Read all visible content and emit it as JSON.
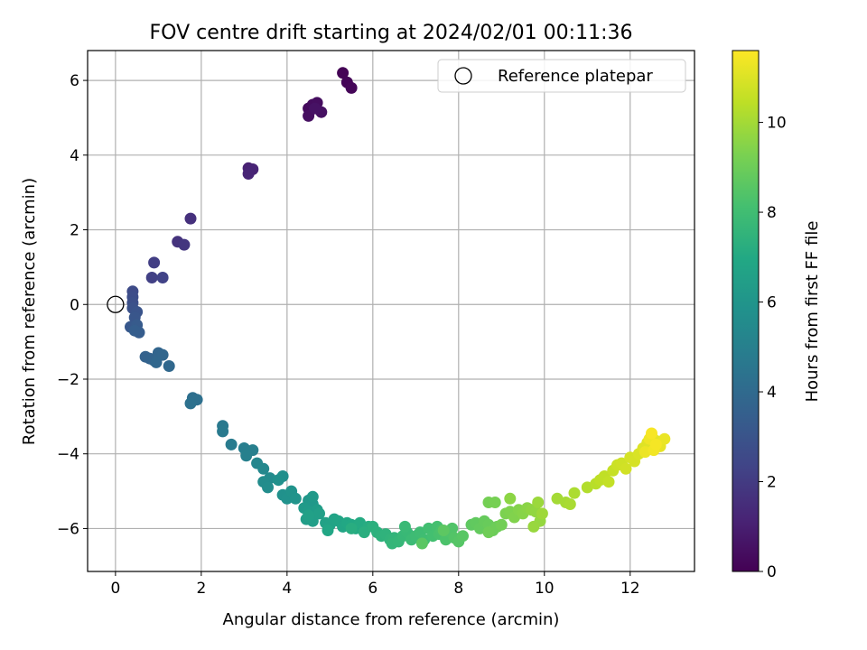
{
  "chart_data": {
    "type": "scatter",
    "title": "FOV centre drift starting at 2024/02/01 00:11:36",
    "xlabel": "Angular distance from reference (arcmin)",
    "ylabel": "Rotation from reference (arcmin)",
    "xlim": [
      -0.65,
      13.5
    ],
    "ylim": [
      -7.15,
      6.8
    ],
    "xticks": [
      0,
      2,
      4,
      6,
      8,
      10,
      12
    ],
    "yticks": [
      -6,
      -4,
      -2,
      0,
      2,
      4,
      6
    ],
    "grid": true,
    "legend": {
      "placement": "top-right",
      "entries": [
        "Reference platepar"
      ]
    },
    "reference_point": {
      "x": 0,
      "y": 0
    },
    "colorbar": {
      "label": "Hours from first FF file",
      "range": [
        0,
        11.6
      ],
      "ticks": [
        0,
        2,
        4,
        6,
        8,
        10
      ],
      "colormap": "viridis"
    },
    "points": [
      [
        5.3,
        6.2,
        0.05
      ],
      [
        5.4,
        5.95,
        0.1
      ],
      [
        5.5,
        5.8,
        0.15
      ],
      [
        4.5,
        5.25,
        0.3
      ],
      [
        4.6,
        5.35,
        0.35
      ],
      [
        4.7,
        5.4,
        0.4
      ],
      [
        4.5,
        5.05,
        0.45
      ],
      [
        4.8,
        5.15,
        0.5
      ],
      [
        4.65,
        5.25,
        0.55
      ],
      [
        3.1,
        3.65,
        1.1
      ],
      [
        3.2,
        3.62,
        1.15
      ],
      [
        3.1,
        3.5,
        1.2
      ],
      [
        1.75,
        2.3,
        1.6
      ],
      [
        1.45,
        1.68,
        1.7
      ],
      [
        1.6,
        1.6,
        1.8
      ],
      [
        0.9,
        1.12,
        2.1
      ],
      [
        0.85,
        0.72,
        2.2
      ],
      [
        1.1,
        0.72,
        2.3
      ],
      [
        0.4,
        0.35,
        2.6
      ],
      [
        0.4,
        0.2,
        2.7
      ],
      [
        0.4,
        0.05,
        2.8
      ],
      [
        0.4,
        -0.1,
        2.9
      ],
      [
        0.5,
        -0.2,
        3.0
      ],
      [
        0.45,
        -0.35,
        3.1
      ],
      [
        0.35,
        -0.6,
        3.2
      ],
      [
        0.5,
        -0.55,
        3.3
      ],
      [
        0.55,
        -0.75,
        3.4
      ],
      [
        0.45,
        -0.7,
        3.45
      ],
      [
        0.7,
        -1.4,
        3.6
      ],
      [
        0.8,
        -1.45,
        3.65
      ],
      [
        0.9,
        -1.5,
        3.7
      ],
      [
        1.0,
        -1.3,
        3.75
      ],
      [
        1.1,
        -1.35,
        3.8
      ],
      [
        0.95,
        -1.55,
        3.85
      ],
      [
        1.25,
        -1.65,
        3.9
      ],
      [
        1.8,
        -2.5,
        4.2
      ],
      [
        1.9,
        -2.55,
        4.25
      ],
      [
        1.75,
        -2.65,
        4.3
      ],
      [
        2.5,
        -3.25,
        4.7
      ],
      [
        2.5,
        -3.4,
        4.75
      ],
      [
        2.7,
        -3.75,
        4.8
      ],
      [
        3.0,
        -3.85,
        4.9
      ],
      [
        3.2,
        -3.9,
        4.95
      ],
      [
        3.05,
        -4.05,
        5.0
      ],
      [
        3.3,
        -4.25,
        5.3
      ],
      [
        3.45,
        -4.4,
        5.4
      ],
      [
        3.6,
        -4.65,
        5.5
      ],
      [
        3.45,
        -4.75,
        5.55
      ],
      [
        3.55,
        -4.9,
        5.6
      ],
      [
        3.9,
        -4.6,
        5.7
      ],
      [
        3.8,
        -4.7,
        5.75
      ],
      [
        3.9,
        -5.1,
        5.8
      ],
      [
        4.0,
        -5.2,
        5.85
      ],
      [
        4.1,
        -5.0,
        5.9
      ],
      [
        4.2,
        -5.2,
        5.95
      ],
      [
        4.5,
        -5.25,
        6.1
      ],
      [
        4.6,
        -5.35,
        6.15
      ],
      [
        4.6,
        -5.15,
        6.2
      ],
      [
        4.4,
        -5.45,
        6.25
      ],
      [
        4.5,
        -5.55,
        6.3
      ],
      [
        4.7,
        -5.5,
        6.35
      ],
      [
        4.45,
        -5.75,
        6.4
      ],
      [
        4.6,
        -5.8,
        6.45
      ],
      [
        4.75,
        -5.6,
        6.5
      ],
      [
        4.5,
        -5.65,
        6.55
      ],
      [
        4.9,
        -5.85,
        6.6
      ],
      [
        5.0,
        -5.9,
        6.65
      ],
      [
        5.1,
        -5.75,
        6.7
      ],
      [
        5.2,
        -5.8,
        6.75
      ],
      [
        5.3,
        -5.95,
        6.8
      ],
      [
        4.95,
        -6.05,
        6.85
      ],
      [
        5.4,
        -5.85,
        6.9
      ],
      [
        5.5,
        -5.9,
        6.95
      ],
      [
        5.6,
        -6.0,
        7.0
      ],
      [
        5.7,
        -5.85,
        7.05
      ],
      [
        5.8,
        -6.05,
        7.1
      ],
      [
        5.9,
        -5.95,
        7.15
      ],
      [
        5.5,
        -6.0,
        7.2
      ],
      [
        5.8,
        -6.1,
        7.25
      ],
      [
        6.0,
        -5.95,
        7.3
      ],
      [
        6.1,
        -6.1,
        7.35
      ],
      [
        6.2,
        -6.2,
        7.4
      ],
      [
        6.3,
        -6.15,
        7.45
      ],
      [
        6.4,
        -6.3,
        7.5
      ],
      [
        6.5,
        -6.25,
        7.55
      ],
      [
        6.45,
        -6.4,
        7.6
      ],
      [
        6.6,
        -6.35,
        7.65
      ],
      [
        6.7,
        -6.2,
        7.7
      ],
      [
        6.8,
        -6.1,
        7.75
      ],
      [
        6.75,
        -5.95,
        7.8
      ],
      [
        6.9,
        -6.3,
        7.85
      ],
      [
        7.0,
        -6.2,
        7.9
      ],
      [
        7.1,
        -6.1,
        7.95
      ],
      [
        7.2,
        -6.3,
        8.0
      ],
      [
        7.3,
        -6.0,
        8.05
      ],
      [
        7.4,
        -6.2,
        8.1
      ],
      [
        7.5,
        -5.95,
        8.15
      ],
      [
        7.55,
        -6.15,
        8.2
      ],
      [
        7.6,
        -6.05,
        8.25
      ],
      [
        7.7,
        -6.3,
        8.3
      ],
      [
        7.8,
        -6.1,
        8.35
      ],
      [
        7.85,
        -6.0,
        8.4
      ],
      [
        7.9,
        -6.25,
        8.45
      ],
      [
        8.0,
        -6.35,
        8.5
      ],
      [
        8.1,
        -6.2,
        8.55
      ],
      [
        7.15,
        -6.4,
        8.6
      ],
      [
        7.65,
        -6.05,
        8.65
      ],
      [
        8.3,
        -5.9,
        8.7
      ],
      [
        8.4,
        -5.85,
        8.75
      ],
      [
        8.5,
        -6.0,
        8.8
      ],
      [
        8.6,
        -5.8,
        8.85
      ],
      [
        8.7,
        -5.9,
        8.9
      ],
      [
        8.8,
        -6.05,
        8.95
      ],
      [
        8.9,
        -5.95,
        9.0
      ],
      [
        8.7,
        -6.1,
        9.05
      ],
      [
        9.0,
        -5.9,
        9.1
      ],
      [
        8.7,
        -5.3,
        9.15
      ],
      [
        8.85,
        -5.3,
        9.2
      ],
      [
        9.1,
        -5.6,
        9.3
      ],
      [
        9.2,
        -5.55,
        9.35
      ],
      [
        9.3,
        -5.7,
        9.4
      ],
      [
        9.4,
        -5.5,
        9.45
      ],
      [
        9.5,
        -5.6,
        9.5
      ],
      [
        9.6,
        -5.45,
        9.55
      ],
      [
        9.2,
        -5.2,
        9.6
      ],
      [
        9.7,
        -5.5,
        9.65
      ],
      [
        9.8,
        -5.55,
        9.7
      ],
      [
        9.9,
        -5.8,
        9.75
      ],
      [
        9.75,
        -5.95,
        9.8
      ],
      [
        9.85,
        -5.3,
        9.85
      ],
      [
        9.95,
        -5.6,
        9.9
      ],
      [
        10.3,
        -5.2,
        10.0
      ],
      [
        10.5,
        -5.3,
        10.05
      ],
      [
        10.6,
        -5.35,
        10.1
      ],
      [
        10.7,
        -5.05,
        10.15
      ],
      [
        11.0,
        -4.9,
        10.25
      ],
      [
        11.2,
        -4.8,
        10.35
      ],
      [
        11.3,
        -4.7,
        10.45
      ],
      [
        11.4,
        -4.6,
        10.5
      ],
      [
        11.5,
        -4.75,
        10.55
      ],
      [
        11.6,
        -4.45,
        10.6
      ],
      [
        11.7,
        -4.3,
        10.7
      ],
      [
        11.8,
        -4.25,
        10.75
      ],
      [
        11.9,
        -4.4,
        10.8
      ],
      [
        12.0,
        -4.1,
        10.85
      ],
      [
        12.1,
        -4.2,
        10.9
      ],
      [
        12.2,
        -4.0,
        10.95
      ],
      [
        12.3,
        -3.85,
        11.0
      ],
      [
        12.4,
        -3.7,
        11.05
      ],
      [
        12.5,
        -3.5,
        11.1
      ],
      [
        12.6,
        -3.65,
        11.15
      ],
      [
        12.7,
        -3.8,
        11.2
      ],
      [
        12.8,
        -3.6,
        11.25
      ],
      [
        12.35,
        -3.95,
        11.3
      ],
      [
        12.45,
        -3.6,
        11.35
      ],
      [
        12.55,
        -3.9,
        11.4
      ],
      [
        12.6,
        -3.75,
        11.45
      ],
      [
        12.5,
        -3.45,
        11.5
      ]
    ]
  }
}
